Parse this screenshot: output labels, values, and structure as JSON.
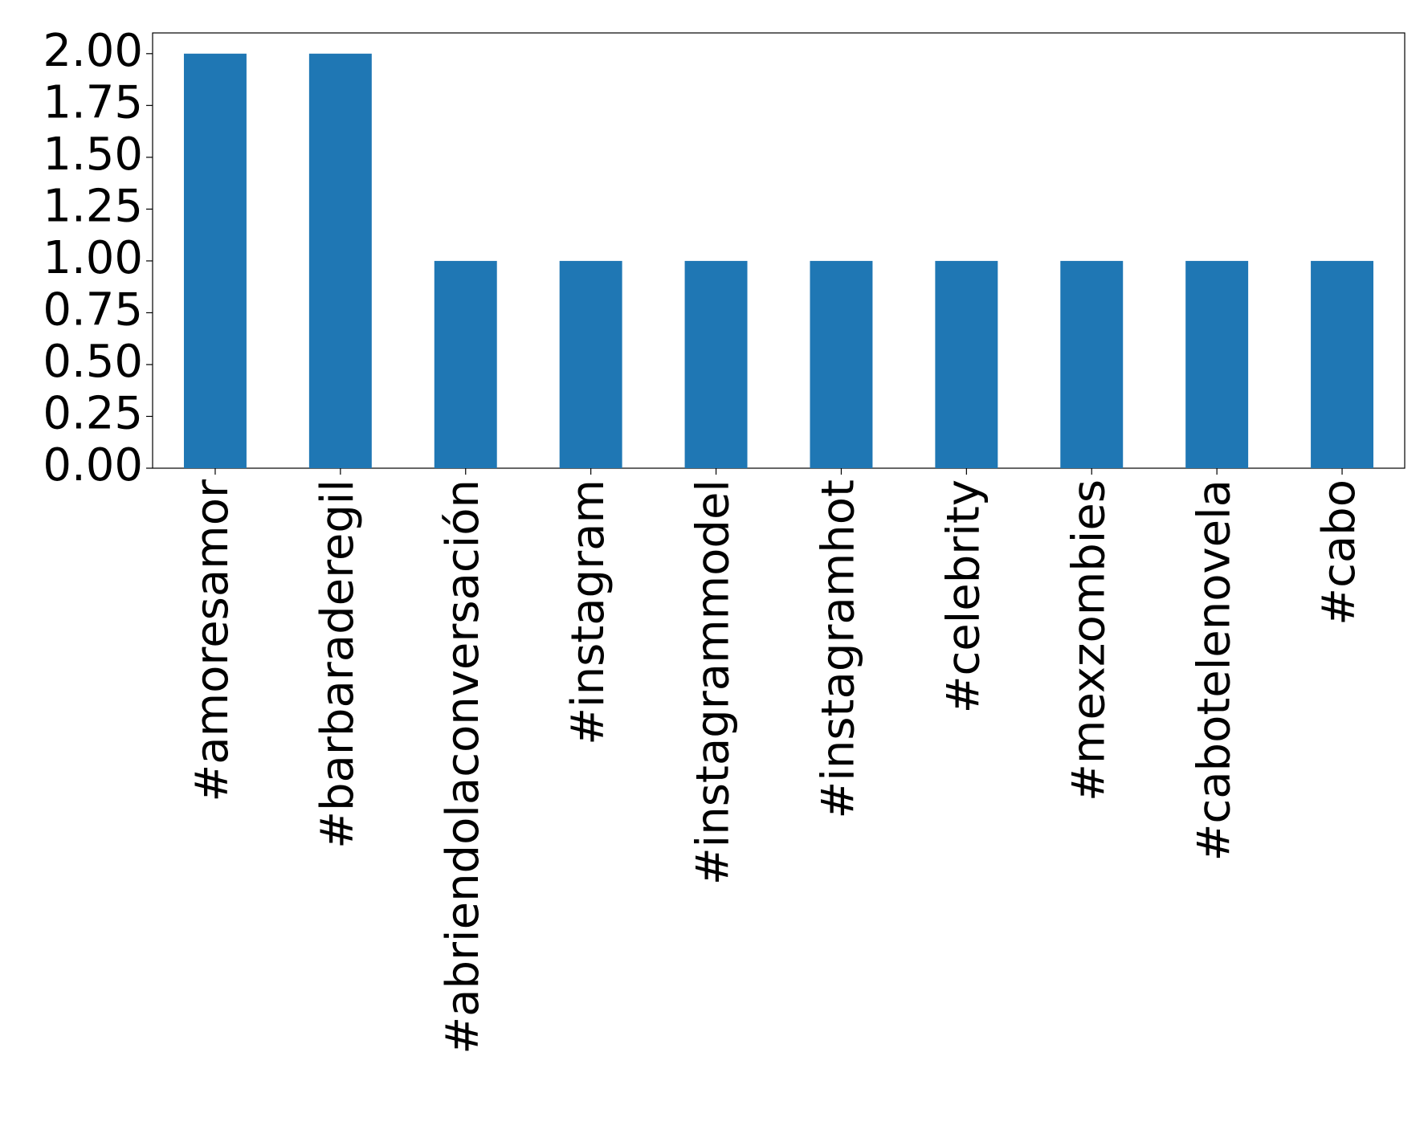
{
  "chart_data": {
    "type": "bar",
    "categories": [
      "#amoresamor",
      "#barbaraderegil",
      "#abriendolaconversación",
      "#instagram",
      "#instagrammodel",
      "#instagramhot",
      "#celebrity",
      "#mexzombies",
      "#cabotelenovela",
      "#cabo"
    ],
    "values": [
      2,
      2,
      1,
      1,
      1,
      1,
      1,
      1,
      1,
      1
    ],
    "color": "#1f77b4",
    "ylim": [
      0,
      2.1
    ],
    "yticks": [
      {
        "value": 0,
        "label": "0.00"
      },
      {
        "value": 0.25,
        "label": "0.25"
      },
      {
        "value": 0.5,
        "label": "0.50"
      },
      {
        "value": 0.75,
        "label": "0.75"
      },
      {
        "value": 1,
        "label": "1.00"
      },
      {
        "value": 1.25,
        "label": "1.25"
      },
      {
        "value": 1.5,
        "label": "1.50"
      },
      {
        "value": 1.75,
        "label": "1.75"
      },
      {
        "value": 2,
        "label": "2.00"
      }
    ],
    "grid": false
  }
}
